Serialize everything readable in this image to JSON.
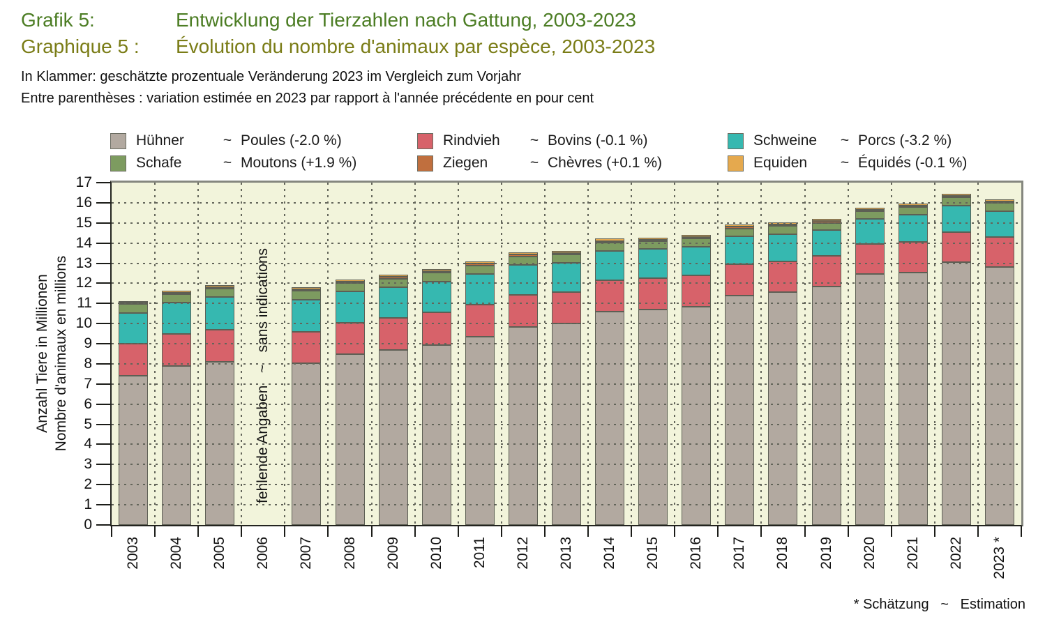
{
  "header": {
    "label_de": "Grafik 5:",
    "title_de": "Entwicklung der Tierzahlen nach Gattung, 2003-2023",
    "label_fr": "Graphique 5 :",
    "title_fr": "Évolution du nombre d'animaux par espèce, 2003-2023",
    "subtitle_de": "In Klammer: geschätzte prozentuale Veränderung 2023 im Vergleich zum Vorjahr",
    "subtitle_fr": "Entre parenthèses : variation estimée en 2023 par rapport à l'année précédente en pour cent"
  },
  "footnote": "* Schätzung   ~   Estimation",
  "legend": {
    "columns": [
      [
        0,
        3
      ],
      [
        1,
        4
      ],
      [
        2,
        5
      ]
    ],
    "tilde": "~"
  },
  "chart_data": {
    "type": "bar",
    "stacked": true,
    "title": "Entwicklung der Tierzahlen nach Gattung, 2003-2023 / Évolution du nombre d'animaux par espèce, 2003-2023",
    "ylabel_de": "Anzahl Tiere in Millionen",
    "ylabel_fr": "Nombre d'animaux en millions",
    "xlabel": "",
    "ylim": [
      0,
      17
    ],
    "y_tick_step": 1,
    "grid": "dashed-both",
    "legend_position": "top",
    "plot_bg": "#f2f4db",
    "categories": [
      "2003",
      "2004",
      "2005",
      "2006",
      "2007",
      "2008",
      "2009",
      "2010",
      "2011",
      "2012",
      "2013",
      "2014",
      "2015",
      "2016",
      "2017",
      "2018",
      "2019",
      "2020",
      "2021",
      "2022",
      "2023"
    ],
    "missing_year": "2006",
    "missing_label": "fehlende Angaben   ~   sans indications",
    "starred_year": "2023",
    "series": [
      {
        "key": "huehner",
        "name_de": "Hühner",
        "name_fr": "Poules",
        "change": "(-2.0 %)",
        "color": "#b2a9a0",
        "values": [
          7.4,
          7.9,
          8.1,
          null,
          8.05,
          8.5,
          8.7,
          8.95,
          9.35,
          9.85,
          10.0,
          10.6,
          10.7,
          10.85,
          11.4,
          11.55,
          11.85,
          12.45,
          12.55,
          13.05,
          12.8
        ]
      },
      {
        "key": "rindvieh",
        "name_de": "Rindvieh",
        "name_fr": "Bovins",
        "change": "(-0.1 %)",
        "color": "#d7626a",
        "values": [
          1.62,
          1.58,
          1.6,
          null,
          1.55,
          1.55,
          1.6,
          1.6,
          1.6,
          1.58,
          1.56,
          1.57,
          1.55,
          1.55,
          1.55,
          1.55,
          1.5,
          1.5,
          1.52,
          1.5,
          1.5
        ]
      },
      {
        "key": "schweine",
        "name_de": "Schweine",
        "name_fr": "Porcs",
        "change": "(-3.2 %)",
        "color": "#36b8b0",
        "values": [
          1.5,
          1.57,
          1.63,
          null,
          1.6,
          1.55,
          1.52,
          1.55,
          1.52,
          1.5,
          1.46,
          1.45,
          1.45,
          1.42,
          1.38,
          1.35,
          1.28,
          1.25,
          1.33,
          1.32,
          1.28
        ]
      },
      {
        "key": "schafe",
        "name_de": "Schafe",
        "name_fr": "Moutons",
        "change": "(+1.9 %)",
        "color": "#7d9b60",
        "values": [
          0.44,
          0.42,
          0.41,
          null,
          0.42,
          0.42,
          0.42,
          0.42,
          0.42,
          0.41,
          0.41,
          0.41,
          0.38,
          0.4,
          0.4,
          0.4,
          0.38,
          0.38,
          0.38,
          0.4,
          0.41
        ]
      },
      {
        "key": "ziegen",
        "name_de": "Ziegen",
        "name_fr": "Chèvres",
        "change": "(+0.1 %)",
        "color": "#c06f3e",
        "values": [
          0.07,
          0.07,
          0.07,
          null,
          0.08,
          0.08,
          0.08,
          0.08,
          0.08,
          0.08,
          0.08,
          0.08,
          0.08,
          0.08,
          0.08,
          0.08,
          0.08,
          0.08,
          0.08,
          0.08,
          0.08
        ]
      },
      {
        "key": "equiden",
        "name_de": "Equiden",
        "name_fr": "Équidés",
        "change": "(-0.1 %)",
        "color": "#e5a94e",
        "values": [
          0.09,
          0.09,
          0.09,
          null,
          0.1,
          0.1,
          0.1,
          0.11,
          0.11,
          0.11,
          0.11,
          0.11,
          0.11,
          0.11,
          0.11,
          0.11,
          0.11,
          0.11,
          0.11,
          0.11,
          0.11
        ]
      }
    ]
  }
}
